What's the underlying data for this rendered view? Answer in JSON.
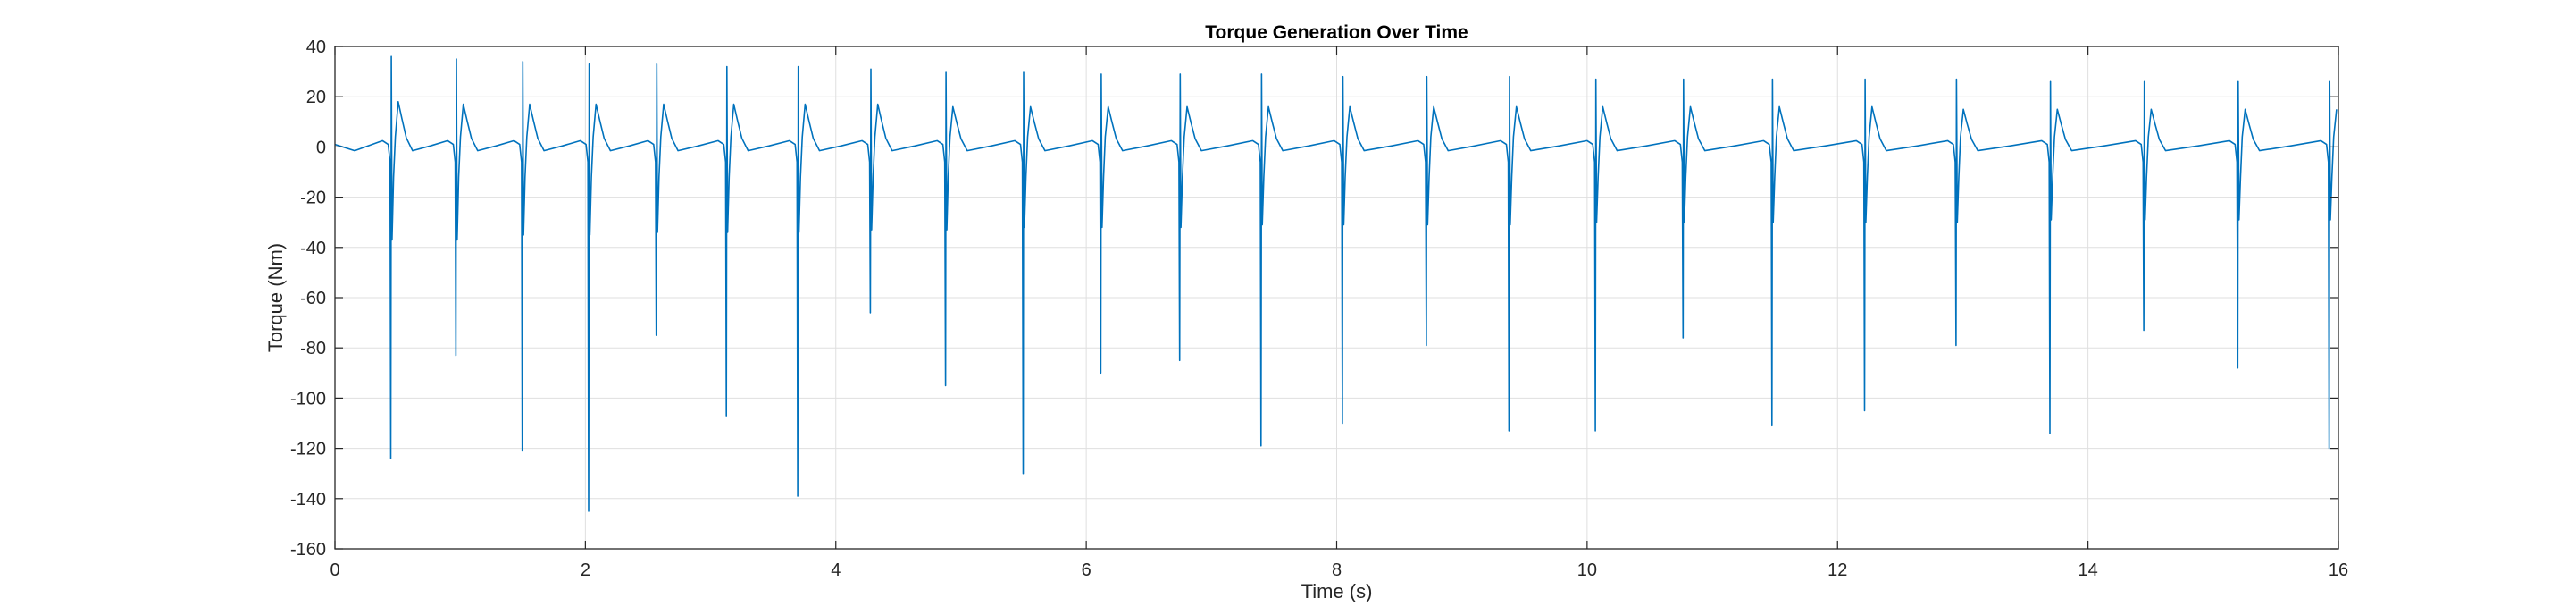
{
  "chart_data": {
    "type": "line",
    "title": "Torque Generation Over Time",
    "xlabel": "Time (s)",
    "ylabel": "Torque (Nm)",
    "xlim": [
      0,
      16
    ],
    "ylim": [
      -160,
      40
    ],
    "xticks": [
      0,
      2,
      4,
      6,
      8,
      10,
      12,
      14,
      16
    ],
    "yticks": [
      40,
      20,
      0,
      -20,
      -40,
      -60,
      -80,
      -100,
      -120,
      -140,
      -160
    ],
    "grid": true,
    "line_color": "#0072BD",
    "baseline": {
      "start_value": 1.0,
      "trough_value": -1.5,
      "pre_peak_value": 2.5
    },
    "events": [
      {
        "t": 0.45,
        "spike_max": 36,
        "spike_min": -124,
        "secondary_min": -37,
        "bump": 18
      },
      {
        "t": 0.97,
        "spike_max": 35,
        "spike_min": -83,
        "secondary_min": -37,
        "bump": 17
      },
      {
        "t": 1.5,
        "spike_max": 34,
        "spike_min": -121,
        "secondary_min": -35,
        "bump": 17
      },
      {
        "t": 2.03,
        "spike_max": 33,
        "spike_min": -145,
        "secondary_min": -35,
        "bump": 17
      },
      {
        "t": 2.57,
        "spike_max": 33,
        "spike_min": -75,
        "secondary_min": -34,
        "bump": 17
      },
      {
        "t": 3.13,
        "spike_max": 32,
        "spike_min": -107,
        "secondary_min": -34,
        "bump": 17
      },
      {
        "t": 3.7,
        "spike_max": 32,
        "spike_min": -139,
        "secondary_min": -34,
        "bump": 17
      },
      {
        "t": 4.28,
        "spike_max": 31,
        "spike_min": -66,
        "secondary_min": -33,
        "bump": 17
      },
      {
        "t": 4.88,
        "spike_max": 30,
        "spike_min": -95,
        "secondary_min": -33,
        "bump": 16
      },
      {
        "t": 5.5,
        "spike_max": 30,
        "spike_min": -130,
        "secondary_min": -32,
        "bump": 16
      },
      {
        "t": 6.12,
        "spike_max": 29,
        "spike_min": -90,
        "secondary_min": -32,
        "bump": 16
      },
      {
        "t": 6.75,
        "spike_max": 29,
        "spike_min": -85,
        "secondary_min": -32,
        "bump": 16
      },
      {
        "t": 7.4,
        "spike_max": 29,
        "spike_min": -119,
        "secondary_min": -31,
        "bump": 16
      },
      {
        "t": 8.05,
        "spike_max": 28,
        "spike_min": -110,
        "secondary_min": -31,
        "bump": 16
      },
      {
        "t": 8.72,
        "spike_max": 28,
        "spike_min": -79,
        "secondary_min": -31,
        "bump": 16
      },
      {
        "t": 9.38,
        "spike_max": 28,
        "spike_min": -113,
        "secondary_min": -31,
        "bump": 16
      },
      {
        "t": 10.07,
        "spike_max": 27,
        "spike_min": -113,
        "secondary_min": -30,
        "bump": 16
      },
      {
        "t": 10.77,
        "spike_max": 27,
        "spike_min": -76,
        "secondary_min": -30,
        "bump": 16
      },
      {
        "t": 11.48,
        "spike_max": 27,
        "spike_min": -111,
        "secondary_min": -30,
        "bump": 16
      },
      {
        "t": 12.22,
        "spike_max": 27,
        "spike_min": -105,
        "secondary_min": -30,
        "bump": 16
      },
      {
        "t": 12.95,
        "spike_max": 27,
        "spike_min": -79,
        "secondary_min": -30,
        "bump": 15
      },
      {
        "t": 13.7,
        "spike_max": 26,
        "spike_min": -114,
        "secondary_min": -29,
        "bump": 15
      },
      {
        "t": 14.45,
        "spike_max": 26,
        "spike_min": -73,
        "secondary_min": -29,
        "bump": 15
      },
      {
        "t": 15.2,
        "spike_max": 26,
        "spike_min": -88,
        "secondary_min": -29,
        "bump": 15
      },
      {
        "t": 15.93,
        "spike_max": 26,
        "spike_min": -120,
        "secondary_min": -29,
        "bump": 15
      }
    ]
  }
}
